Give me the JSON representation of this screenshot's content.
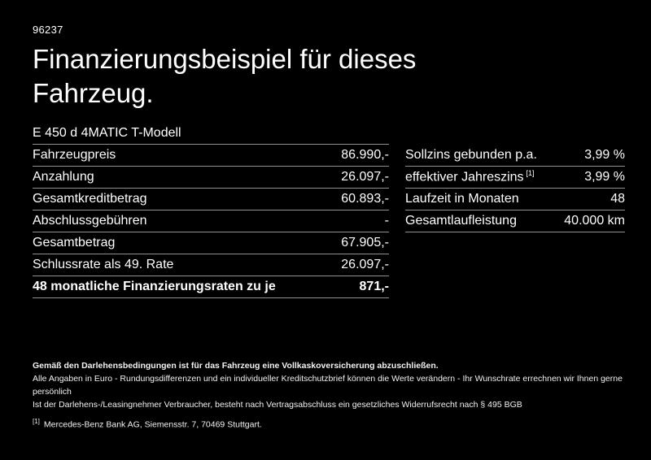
{
  "page": {
    "background_color": "#000000",
    "text_color": "#ffffff",
    "divider_color": "#909090"
  },
  "header": {
    "ref_number": "96237",
    "title": "Finanzierungsbeispiel für dieses Fahrzeug."
  },
  "vehicle": {
    "model": "E 450 d 4MATIC T-Modell"
  },
  "finance_table": {
    "rows": [
      {
        "label": "Fahrzeugpreis",
        "value": "86.990,-"
      },
      {
        "label": "Anzahlung",
        "value": "26.097,-"
      },
      {
        "label": "Gesamtkreditbetrag",
        "value": "60.893,-"
      },
      {
        "label": "Abschlussgebühren",
        "value": "-"
      },
      {
        "label": "Gesamtbetrag",
        "value": "67.905,-"
      },
      {
        "label": "Schlussrate als 49. Rate",
        "value": "26.097,-"
      },
      {
        "label": "48 monatliche Finanzierungsraten zu je",
        "value": "871,-"
      }
    ]
  },
  "conditions_table": {
    "rows": [
      {
        "label": "Sollzins gebunden p.a.",
        "superscript": "",
        "value": "3,99 %"
      },
      {
        "label": "effektiver Jahreszins",
        "superscript": "[1]",
        "value": "3,99 %"
      },
      {
        "label": "Laufzeit in Monaten",
        "superscript": "",
        "value": "48"
      },
      {
        "label": "Gesamtlaufleistung",
        "superscript": "",
        "value": "40.000 km"
      }
    ]
  },
  "footnotes": {
    "insurance_note": "Gemäß den Darlehensbedingungen ist für das Fahrzeug eine Vollkaskoversicherung abzuschließen.",
    "disclaimer_line1": "Alle Angaben in Euro - Rundungsdifferenzen und ein individueller Kreditschutzbrief können die Werte verändern - Ihr Wunschrate errechnen wir Ihnen gerne persönlich",
    "disclaimer_line2": "Ist der Darlehens-/Leasingnehmer Verbraucher, besteht nach Vertragsabschluss ein gesetzliches Widerrufsrecht nach § 495 BGB",
    "footnote_marker": "[1]",
    "footnote_text": "Mercedes-Benz Bank AG, Siemensstr. 7, 70469 Stuttgart."
  }
}
